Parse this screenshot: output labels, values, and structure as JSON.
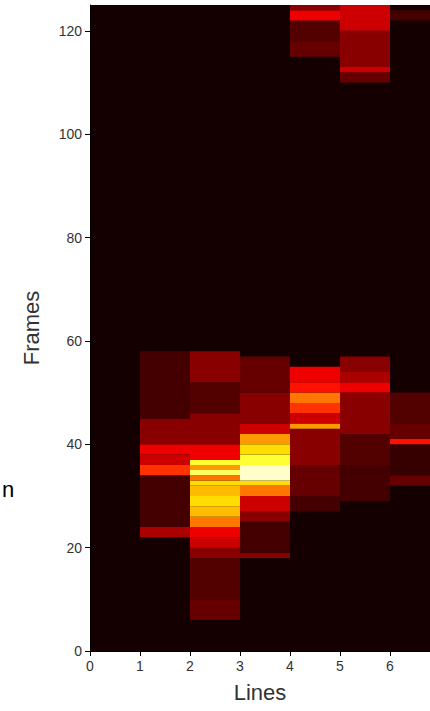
{
  "chart_data": {
    "type": "heatmap",
    "x_label": "Lines",
    "y_label": "Frames",
    "annotation": "n",
    "xlim": [
      0,
      6.8
    ],
    "xticks": [
      0,
      1,
      2,
      3,
      4,
      5,
      6
    ],
    "ylim": [
      0,
      125
    ],
    "yticks": [
      0,
      20,
      40,
      60,
      80,
      100,
      120
    ],
    "grid": false,
    "color_range": [
      0,
      1
    ],
    "cells": [
      {
        "lines": [
          1,
          2
        ],
        "frames": [
          22,
          24
        ],
        "value": 0.25
      },
      {
        "lines": [
          1,
          2
        ],
        "frames": [
          24,
          34
        ],
        "value": 0.1
      },
      {
        "lines": [
          1,
          2
        ],
        "frames": [
          34,
          36
        ],
        "value": 0.45
      },
      {
        "lines": [
          1,
          2
        ],
        "frames": [
          36,
          38
        ],
        "value": 0.3
      },
      {
        "lines": [
          1,
          2
        ],
        "frames": [
          38,
          40
        ],
        "value": 0.35
      },
      {
        "lines": [
          1,
          2
        ],
        "frames": [
          40,
          45
        ],
        "value": 0.2
      },
      {
        "lines": [
          1,
          2
        ],
        "frames": [
          45,
          58
        ],
        "value": 0.1
      },
      {
        "lines": [
          2,
          3
        ],
        "frames": [
          6,
          10
        ],
        "value": 0.15
      },
      {
        "lines": [
          2,
          3
        ],
        "frames": [
          10,
          18
        ],
        "value": 0.12
      },
      {
        "lines": [
          2,
          3
        ],
        "frames": [
          18,
          20
        ],
        "value": 0.2
      },
      {
        "lines": [
          2,
          3
        ],
        "frames": [
          20,
          22
        ],
        "value": 0.3
      },
      {
        "lines": [
          2,
          3
        ],
        "frames": [
          22,
          24
        ],
        "value": 0.35
      },
      {
        "lines": [
          2,
          3
        ],
        "frames": [
          24,
          26
        ],
        "value": 0.55
      },
      {
        "lines": [
          2,
          3
        ],
        "frames": [
          26,
          28
        ],
        "value": 0.65
      },
      {
        "lines": [
          2,
          3
        ],
        "frames": [
          28,
          30
        ],
        "value": 0.7
      },
      {
        "lines": [
          2,
          3
        ],
        "frames": [
          30,
          32
        ],
        "value": 0.65
      },
      {
        "lines": [
          2,
          3
        ],
        "frames": [
          32,
          33
        ],
        "value": 0.7
      },
      {
        "lines": [
          2,
          3
        ],
        "frames": [
          33,
          34
        ],
        "value": 0.55
      },
      {
        "lines": [
          2,
          3
        ],
        "frames": [
          34,
          35
        ],
        "value": 0.85
      },
      {
        "lines": [
          2,
          3
        ],
        "frames": [
          35,
          36
        ],
        "value": 0.6
      },
      {
        "lines": [
          2,
          3
        ],
        "frames": [
          36,
          37
        ],
        "value": 0.8
      },
      {
        "lines": [
          2,
          3
        ],
        "frames": [
          37,
          40
        ],
        "value": 0.35
      },
      {
        "lines": [
          2,
          3
        ],
        "frames": [
          40,
          46
        ],
        "value": 0.2
      },
      {
        "lines": [
          2,
          3
        ],
        "frames": [
          46,
          52
        ],
        "value": 0.12
      },
      {
        "lines": [
          2,
          3
        ],
        "frames": [
          52,
          58
        ],
        "value": 0.2
      },
      {
        "lines": [
          3,
          4
        ],
        "frames": [
          18,
          19
        ],
        "value": 0.2
      },
      {
        "lines": [
          3,
          4
        ],
        "frames": [
          19,
          25
        ],
        "value": 0.1
      },
      {
        "lines": [
          3,
          4
        ],
        "frames": [
          25,
          27
        ],
        "value": 0.2
      },
      {
        "lines": [
          3,
          4
        ],
        "frames": [
          27,
          30
        ],
        "value": 0.3
      },
      {
        "lines": [
          3,
          4
        ],
        "frames": [
          30,
          32
        ],
        "value": 0.55
      },
      {
        "lines": [
          3,
          4
        ],
        "frames": [
          32,
          33
        ],
        "value": 0.7
      },
      {
        "lines": [
          3,
          4
        ],
        "frames": [
          33,
          36
        ],
        "value": 0.95
      },
      {
        "lines": [
          3,
          4
        ],
        "frames": [
          36,
          38
        ],
        "value": 0.8
      },
      {
        "lines": [
          3,
          4
        ],
        "frames": [
          38,
          40
        ],
        "value": 0.7
      },
      {
        "lines": [
          3,
          4
        ],
        "frames": [
          40,
          42
        ],
        "value": 0.6
      },
      {
        "lines": [
          3,
          4
        ],
        "frames": [
          42,
          44
        ],
        "value": 0.3
      },
      {
        "lines": [
          3,
          4
        ],
        "frames": [
          44,
          50
        ],
        "value": 0.2
      },
      {
        "lines": [
          3,
          4
        ],
        "frames": [
          50,
          57
        ],
        "value": 0.15
      },
      {
        "lines": [
          4,
          5
        ],
        "frames": [
          27,
          30
        ],
        "value": 0.1
      },
      {
        "lines": [
          4,
          5
        ],
        "frames": [
          30,
          36
        ],
        "value": 0.15
      },
      {
        "lines": [
          4,
          5
        ],
        "frames": [
          36,
          43
        ],
        "value": 0.2
      },
      {
        "lines": [
          4,
          5
        ],
        "frames": [
          43,
          44
        ],
        "value": 0.6
      },
      {
        "lines": [
          4,
          5
        ],
        "frames": [
          44,
          46
        ],
        "value": 0.3
      },
      {
        "lines": [
          4,
          5
        ],
        "frames": [
          46,
          48
        ],
        "value": 0.45
      },
      {
        "lines": [
          4,
          5
        ],
        "frames": [
          48,
          50
        ],
        "value": 0.55
      },
      {
        "lines": [
          4,
          5
        ],
        "frames": [
          50,
          52
        ],
        "value": 0.4
      },
      {
        "lines": [
          4,
          5
        ],
        "frames": [
          52,
          55
        ],
        "value": 0.35
      },
      {
        "lines": [
          4,
          5
        ],
        "frames": [
          115,
          118
        ],
        "value": 0.15
      },
      {
        "lines": [
          4,
          5
        ],
        "frames": [
          118,
          122
        ],
        "value": 0.12
      },
      {
        "lines": [
          4,
          5
        ],
        "frames": [
          122,
          124
        ],
        "value": 0.35
      },
      {
        "lines": [
          4,
          5
        ],
        "frames": [
          124,
          125
        ],
        "value": 0.2
      },
      {
        "lines": [
          5,
          6
        ],
        "frames": [
          29,
          36
        ],
        "value": 0.1
      },
      {
        "lines": [
          5,
          6
        ],
        "frames": [
          36,
          42
        ],
        "value": 0.12
      },
      {
        "lines": [
          5,
          6
        ],
        "frames": [
          42,
          50
        ],
        "value": 0.2
      },
      {
        "lines": [
          5,
          6
        ],
        "frames": [
          50,
          52
        ],
        "value": 0.35
      },
      {
        "lines": [
          5,
          6
        ],
        "frames": [
          52,
          54
        ],
        "value": 0.25
      },
      {
        "lines": [
          5,
          6
        ],
        "frames": [
          54,
          57
        ],
        "value": 0.2
      },
      {
        "lines": [
          5,
          6
        ],
        "frames": [
          110,
          112
        ],
        "value": 0.15
      },
      {
        "lines": [
          5,
          6
        ],
        "frames": [
          112,
          113
        ],
        "value": 0.3
      },
      {
        "lines": [
          5,
          6
        ],
        "frames": [
          113,
          120
        ],
        "value": 0.2
      },
      {
        "lines": [
          5,
          6
        ],
        "frames": [
          120,
          125
        ],
        "value": 0.3
      },
      {
        "lines": [
          6,
          7
        ],
        "frames": [
          32,
          34
        ],
        "value": 0.15
      },
      {
        "lines": [
          6,
          7
        ],
        "frames": [
          34,
          40
        ],
        "value": 0.08
      },
      {
        "lines": [
          6,
          7
        ],
        "frames": [
          40,
          41
        ],
        "value": 0.4
      },
      {
        "lines": [
          6,
          7
        ],
        "frames": [
          41,
          44
        ],
        "value": 0.15
      },
      {
        "lines": [
          6,
          7
        ],
        "frames": [
          44,
          50
        ],
        "value": 0.12
      },
      {
        "lines": [
          6,
          7
        ],
        "frames": [
          122,
          124
        ],
        "value": 0.1
      }
    ]
  }
}
